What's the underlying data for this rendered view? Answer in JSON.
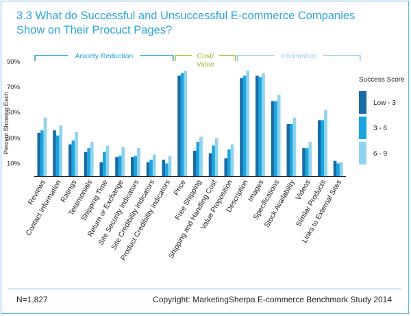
{
  "title": "3.3 What do Successful and Unsuccessful E-commerce Companies Show on Their Procuct Pages?",
  "footer": {
    "sample_size": "N=1,827",
    "copyright": "Copyright: MarketingSherpa E-commerce Benchmark Study 2014"
  },
  "colors": {
    "frame": "#5fb6e0",
    "title": "#2aa7d8",
    "anxiety_bracket": "#1aa6d9",
    "cost_bracket": "#9bbf2a",
    "information_bracket": "#8fd0ec"
  },
  "chart_data": {
    "type": "bar",
    "ylabel": "Percent Showing Each",
    "yticks": [
      "10%",
      "30%",
      "50%",
      "70%",
      "90%"
    ],
    "ytick_values": [
      10,
      30,
      50,
      70,
      90
    ],
    "ylim": [
      0,
      90
    ],
    "grid": false,
    "legend": {
      "title": "Success Score",
      "placement": "right"
    },
    "groups": [
      {
        "label": "Anxiety Reduction",
        "start": 0,
        "end": 8,
        "color": "#1aa6d9"
      },
      {
        "label": "Cost/ Value",
        "start": 9,
        "end": 12,
        "color": "#9bbf2a"
      },
      {
        "label": "Information",
        "start": 13,
        "end": 20,
        "color": "#8fd0ec"
      }
    ],
    "categories": [
      "Reviews",
      "Contact Information",
      "Ratings",
      "Testimonials",
      "Shipping Time",
      "Return or Exchange",
      "Site Security Indicators",
      "Site Credibility Indicators",
      "Product Credibility Indicators",
      "Price",
      "Free Shipping",
      "Shipping and Handling Cost",
      "Value Proposition",
      "Description",
      "Images",
      "Specifications",
      "Stock Availability",
      "Videos",
      "Similar Products",
      "Links to External Sites"
    ],
    "series": [
      {
        "name": "Low - 3",
        "color": "#1a6aa6",
        "values": [
          34,
          36,
          25,
          19,
          11,
          15,
          15,
          11,
          13,
          79,
          20,
          18,
          14,
          77,
          79,
          59,
          41,
          22,
          44,
          12
        ]
      },
      {
        "name": "3 - 6",
        "color": "#16a7de",
        "values": [
          36,
          32,
          28,
          22,
          19,
          16,
          16,
          13,
          10,
          81,
          27,
          24,
          21,
          79,
          78,
          59,
          41,
          22,
          44,
          10
        ]
      },
      {
        "name": "6 - 9",
        "color": "#8fd3ef",
        "values": [
          46,
          40,
          35,
          27,
          24,
          23,
          22,
          17,
          16,
          83,
          31,
          30,
          25,
          83,
          81,
          64,
          46,
          27,
          52,
          11
        ]
      }
    ]
  }
}
